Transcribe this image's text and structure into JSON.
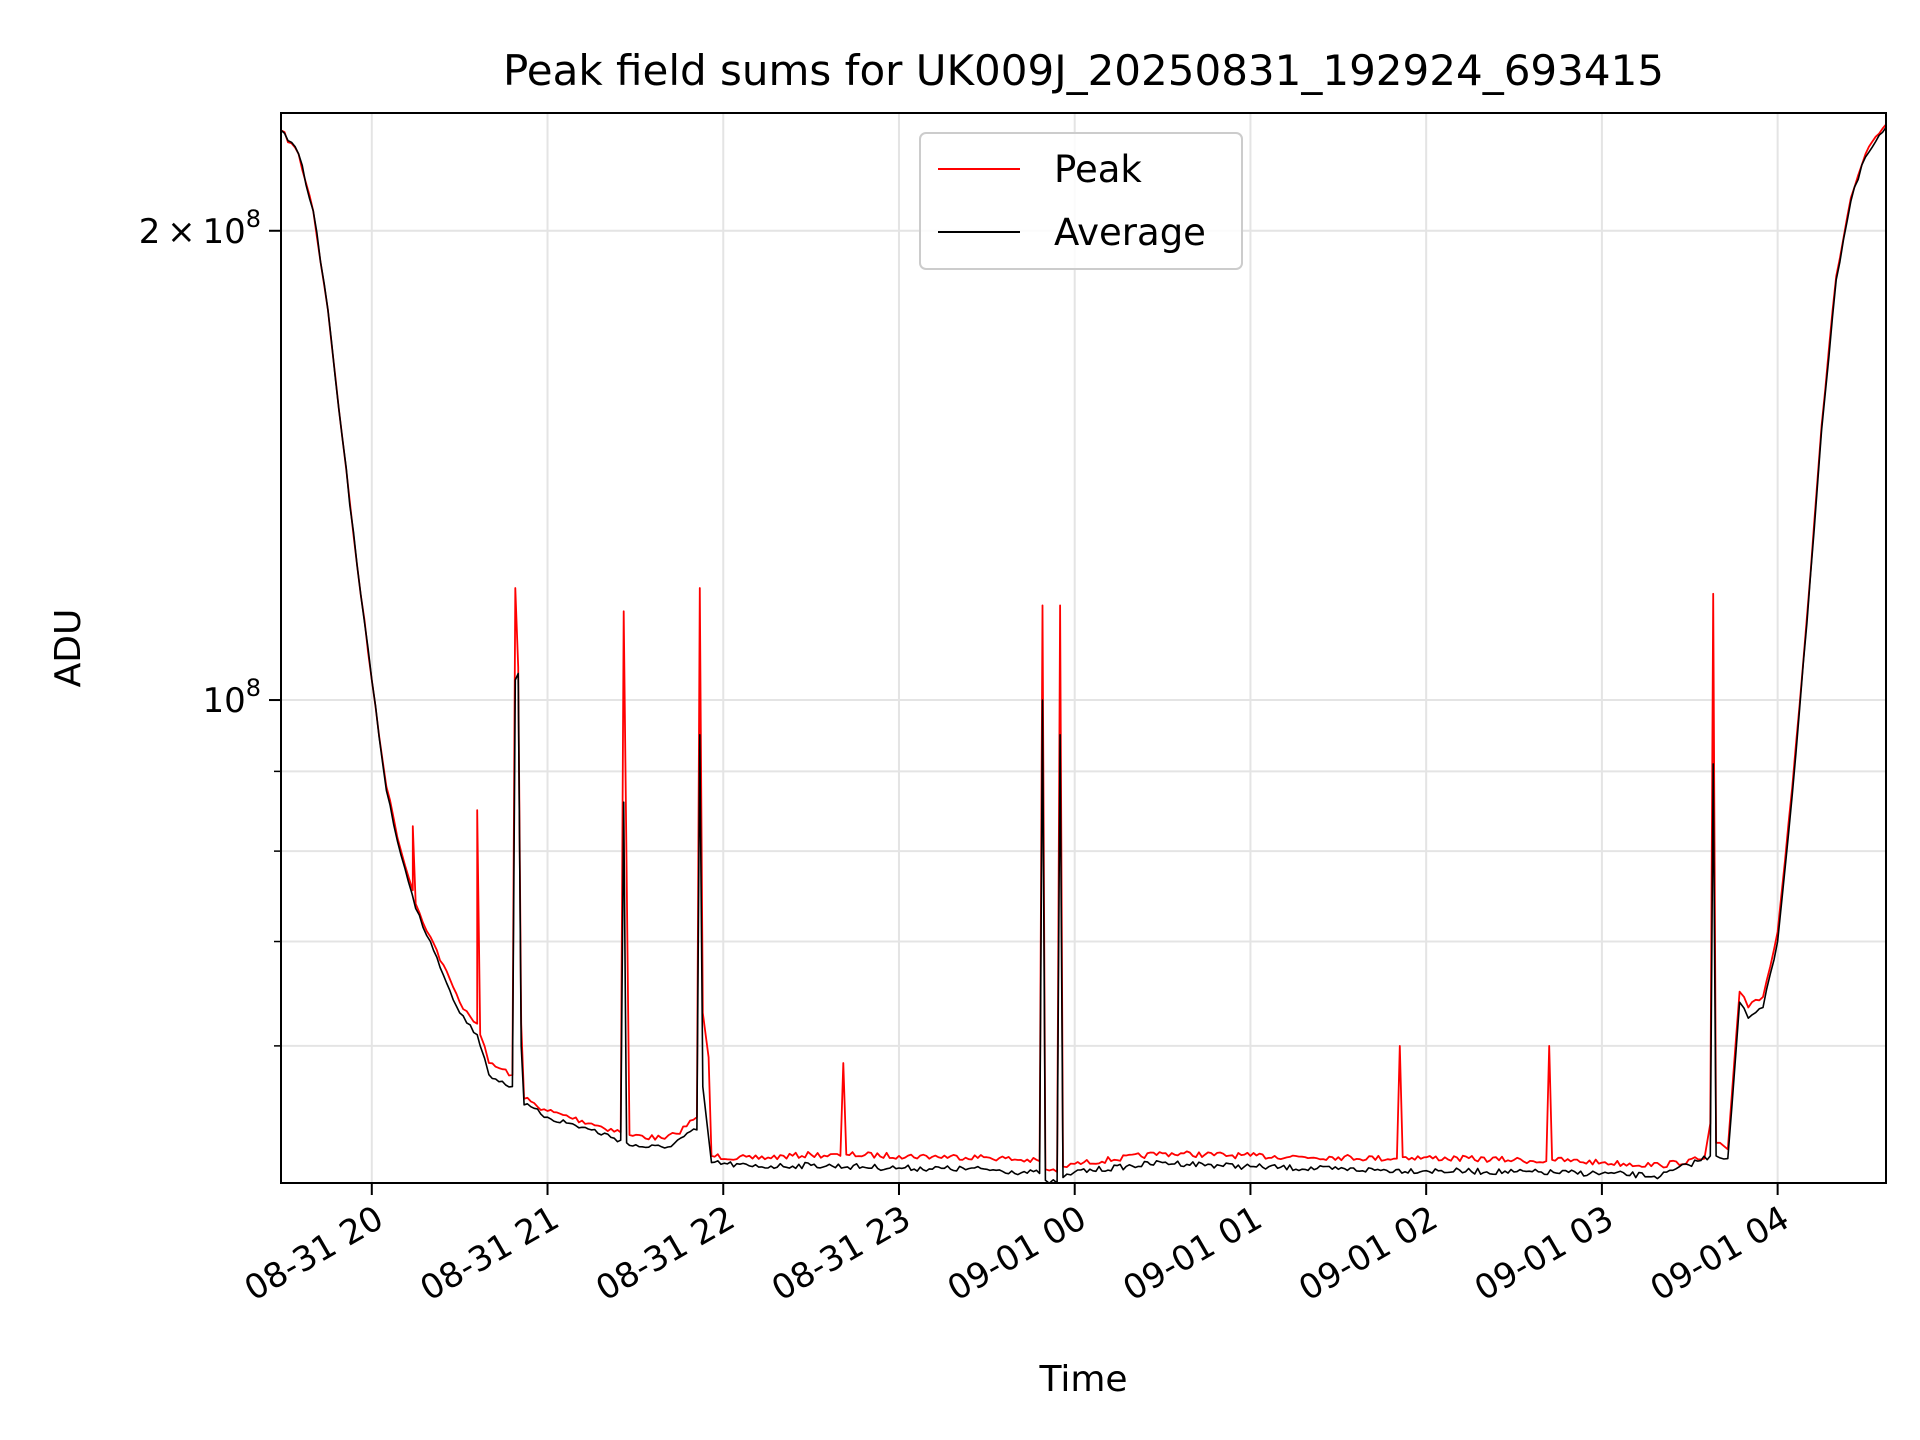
{
  "chart_data": {
    "type": "line",
    "title": "Peak field sums for UK009J_20250831_192924_693415",
    "xlabel": "Time",
    "ylabel": "ADU",
    "yscale": "log",
    "ylim": [
      49000000,
      238000000
    ],
    "xlim": [
      "2025-08-31 19:29",
      "2025-09-01 04:37"
    ],
    "x_tick_labels": [
      "08-31 20",
      "08-31 21",
      "08-31 22",
      "08-31 23",
      "09-01 00",
      "09-01 01",
      "09-01 02",
      "09-01 03",
      "09-01 04"
    ],
    "y_tick_labels": [
      {
        "value": 200000000,
        "mantissa": "2",
        "exponent": "8"
      },
      {
        "value": 100000000,
        "mantissa": "",
        "exponent": "8"
      }
    ],
    "grid": true,
    "legend_position": "upper center",
    "legend": [
      {
        "label": "Peak",
        "color": "#ff0000"
      },
      {
        "label": "Average",
        "color": "#000000"
      }
    ],
    "series": [
      {
        "name": "Peak",
        "color": "#ff0000",
        "x": [
          "2025-08-31 19:29",
          "2025-08-31 19:35",
          "2025-08-31 19:40",
          "2025-08-31 19:45",
          "2025-08-31 19:50",
          "2025-08-31 19:55",
          "2025-08-31 20:00",
          "2025-08-31 20:05",
          "2025-08-31 20:10",
          "2025-08-31 20:14",
          "2025-08-31 20:14",
          "2025-08-31 20:15",
          "2025-08-31 20:20",
          "2025-08-31 20:30",
          "2025-08-31 20:36",
          "2025-08-31 20:36",
          "2025-08-31 20:37",
          "2025-08-31 20:40",
          "2025-08-31 20:48",
          "2025-08-31 20:49",
          "2025-08-31 20:50",
          "2025-08-31 20:51",
          "2025-08-31 20:52",
          "2025-08-31 21:00",
          "2025-08-31 21:15",
          "2025-08-31 21:25",
          "2025-08-31 21:26",
          "2025-08-31 21:27",
          "2025-08-31 21:28",
          "2025-08-31 21:40",
          "2025-08-31 21:44",
          "2025-08-31 21:51",
          "2025-08-31 21:52",
          "2025-08-31 21:53",
          "2025-08-31 21:55",
          "2025-08-31 21:56",
          "2025-08-31 22:10",
          "2025-08-31 22:30",
          "2025-08-31 22:40",
          "2025-08-31 22:41",
          "2025-08-31 22:42",
          "2025-08-31 23:00",
          "2025-08-31 23:30",
          "2025-08-31 23:48",
          "2025-08-31 23:49",
          "2025-08-31 23:50",
          "2025-08-31 23:54",
          "2025-08-31 23:55",
          "2025-08-31 23:56",
          "2025-09-01 00:00",
          "2025-09-01 00:30",
          "2025-09-01 01:00",
          "2025-09-01 01:30",
          "2025-09-01 01:50",
          "2025-09-01 01:51",
          "2025-09-01 01:52",
          "2025-09-01 02:30",
          "2025-09-01 02:41",
          "2025-09-01 02:42",
          "2025-09-01 02:43",
          "2025-09-01 03:00",
          "2025-09-01 03:20",
          "2025-09-01 03:35",
          "2025-09-01 03:37",
          "2025-09-01 03:38",
          "2025-09-01 03:39",
          "2025-09-01 03:43",
          "2025-09-01 03:47",
          "2025-09-01 03:50",
          "2025-09-01 03:55",
          "2025-09-01 04:00",
          "2025-09-01 04:05",
          "2025-09-01 04:10",
          "2025-09-01 04:15",
          "2025-09-01 04:20",
          "2025-09-01 04:25",
          "2025-09-01 04:30",
          "2025-09-01 04:37"
        ],
        "values": [
          232000000,
          224000000,
          206000000,
          178000000,
          147000000,
          122000000,
          103000000,
          88000000,
          80000000,
          75500000,
          83000000,
          74000000,
          70500000,
          64000000,
          62000000,
          85000000,
          61000000,
          58500000,
          57500000,
          118000000,
          105000000,
          62000000,
          55500000,
          54500000,
          53500000,
          52800000,
          114000000,
          78000000,
          52600000,
          52300000,
          52700000,
          54000000,
          118000000,
          63000000,
          59000000,
          51000000,
          50800000,
          51100000,
          51000000,
          58500000,
          51100000,
          51000000,
          50900000,
          50600000,
          115000000,
          50000000,
          49800000,
          115000000,
          50200000,
          50400000,
          51200000,
          51000000,
          50900000,
          50800000,
          60000000,
          50900000,
          50700000,
          50600000,
          60000000,
          50700000,
          50500000,
          50300000,
          50800000,
          53500000,
          117000000,
          52000000,
          51500000,
          65000000,
          63500000,
          64500000,
          71000000,
          88000000,
          113000000,
          150000000,
          187000000,
          210000000,
          224000000,
          234000000
        ]
      },
      {
        "name": "Average",
        "color": "#000000",
        "x": [
          "2025-08-31 19:29",
          "2025-08-31 19:35",
          "2025-08-31 19:40",
          "2025-08-31 19:45",
          "2025-08-31 19:50",
          "2025-08-31 19:55",
          "2025-08-31 20:00",
          "2025-08-31 20:05",
          "2025-08-31 20:10",
          "2025-08-31 20:15",
          "2025-08-31 20:20",
          "2025-08-31 20:30",
          "2025-08-31 20:36",
          "2025-08-31 20:37",
          "2025-08-31 20:40",
          "2025-08-31 20:48",
          "2025-08-31 20:49",
          "2025-08-31 20:50",
          "2025-08-31 20:51",
          "2025-08-31 20:52",
          "2025-08-31 21:00",
          "2025-08-31 21:15",
          "2025-08-31 21:25",
          "2025-08-31 21:26",
          "2025-08-31 21:27",
          "2025-08-31 21:28",
          "2025-08-31 21:40",
          "2025-08-31 21:51",
          "2025-08-31 21:52",
          "2025-08-31 21:53",
          "2025-08-31 21:56",
          "2025-08-31 22:10",
          "2025-08-31 22:30",
          "2025-08-31 23:00",
          "2025-08-31 23:30",
          "2025-08-31 23:48",
          "2025-08-31 23:49",
          "2025-08-31 23:50",
          "2025-08-31 23:54",
          "2025-08-31 23:55",
          "2025-08-31 23:56",
          "2025-09-01 00:00",
          "2025-09-01 00:30",
          "2025-09-01 01:00",
          "2025-09-01 01:30",
          "2025-09-01 02:00",
          "2025-09-01 02:30",
          "2025-09-01 03:00",
          "2025-09-01 03:20",
          "2025-09-01 03:37",
          "2025-09-01 03:38",
          "2025-09-01 03:39",
          "2025-09-01 03:43",
          "2025-09-01 03:47",
          "2025-09-01 03:50",
          "2025-09-01 03:55",
          "2025-09-01 04:00",
          "2025-09-01 04:05",
          "2025-09-01 04:10",
          "2025-09-01 04:15",
          "2025-09-01 04:20",
          "2025-09-01 04:25",
          "2025-09-01 04:30",
          "2025-09-01 04:37"
        ],
        "values": [
          232000000,
          224000000,
          206000000,
          178000000,
          147000000,
          122000000,
          103000000,
          87500000,
          79500000,
          73500000,
          70000000,
          63000000,
          61000000,
          60000000,
          57500000,
          56500000,
          103000000,
          104000000,
          60000000,
          55000000,
          54000000,
          53000000,
          52200000,
          86000000,
          52000000,
          51800000,
          51600000,
          53000000,
          95000000,
          56500000,
          50500000,
          50200000,
          50300000,
          50100000,
          50000000,
          49700000,
          100000000,
          49200000,
          49000000,
          95000000,
          49400000,
          49800000,
          50500000,
          50200000,
          50000000,
          49900000,
          49800000,
          49700000,
          49500000,
          51000000,
          91000000,
          51000000,
          50800000,
          64000000,
          62500000,
          63500000,
          70000000,
          87000000,
          112000000,
          149000000,
          186000000,
          209000000,
          223000000,
          233000000
        ]
      }
    ]
  }
}
